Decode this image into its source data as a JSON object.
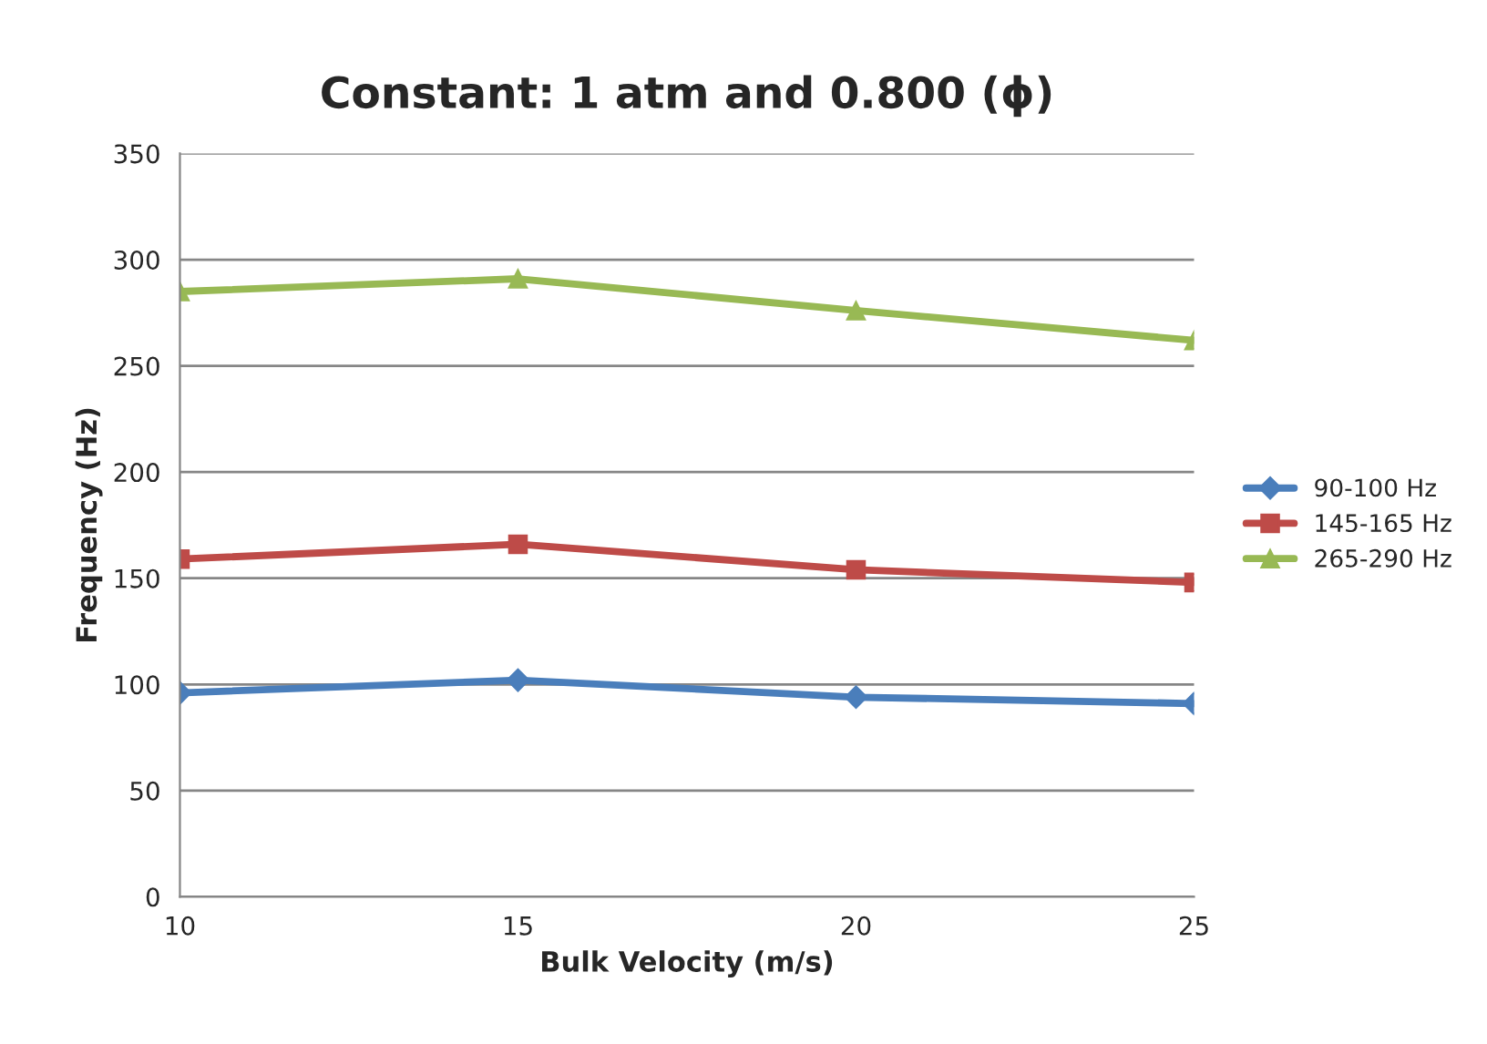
{
  "chart_data": {
    "type": "line",
    "title": "Constant: 1 atm and 0.800 (ϕ)",
    "xlabel": "Bulk Velocity (m/s)",
    "ylabel": "Frequency (Hz)",
    "x": [
      10,
      15,
      20,
      25
    ],
    "series": [
      {
        "name": "90-100 Hz",
        "color": "#4a7ebb",
        "marker": "diamond",
        "values": [
          96,
          102,
          94,
          91
        ]
      },
      {
        "name": "145-165 Hz",
        "color": "#be4b48",
        "marker": "square",
        "values": [
          159,
          166,
          154,
          148
        ]
      },
      {
        "name": "265-290 Hz",
        "color": "#98b954",
        "marker": "triangle",
        "values": [
          285,
          291,
          276,
          262
        ]
      }
    ],
    "xlim": [
      10,
      25
    ],
    "xticks": [
      10,
      15,
      20,
      25
    ],
    "ylim": [
      0,
      350
    ],
    "yticks": [
      0,
      50,
      100,
      150,
      200,
      250,
      300,
      350
    ],
    "grid": "y",
    "legend": "right",
    "line_style": "solid"
  }
}
